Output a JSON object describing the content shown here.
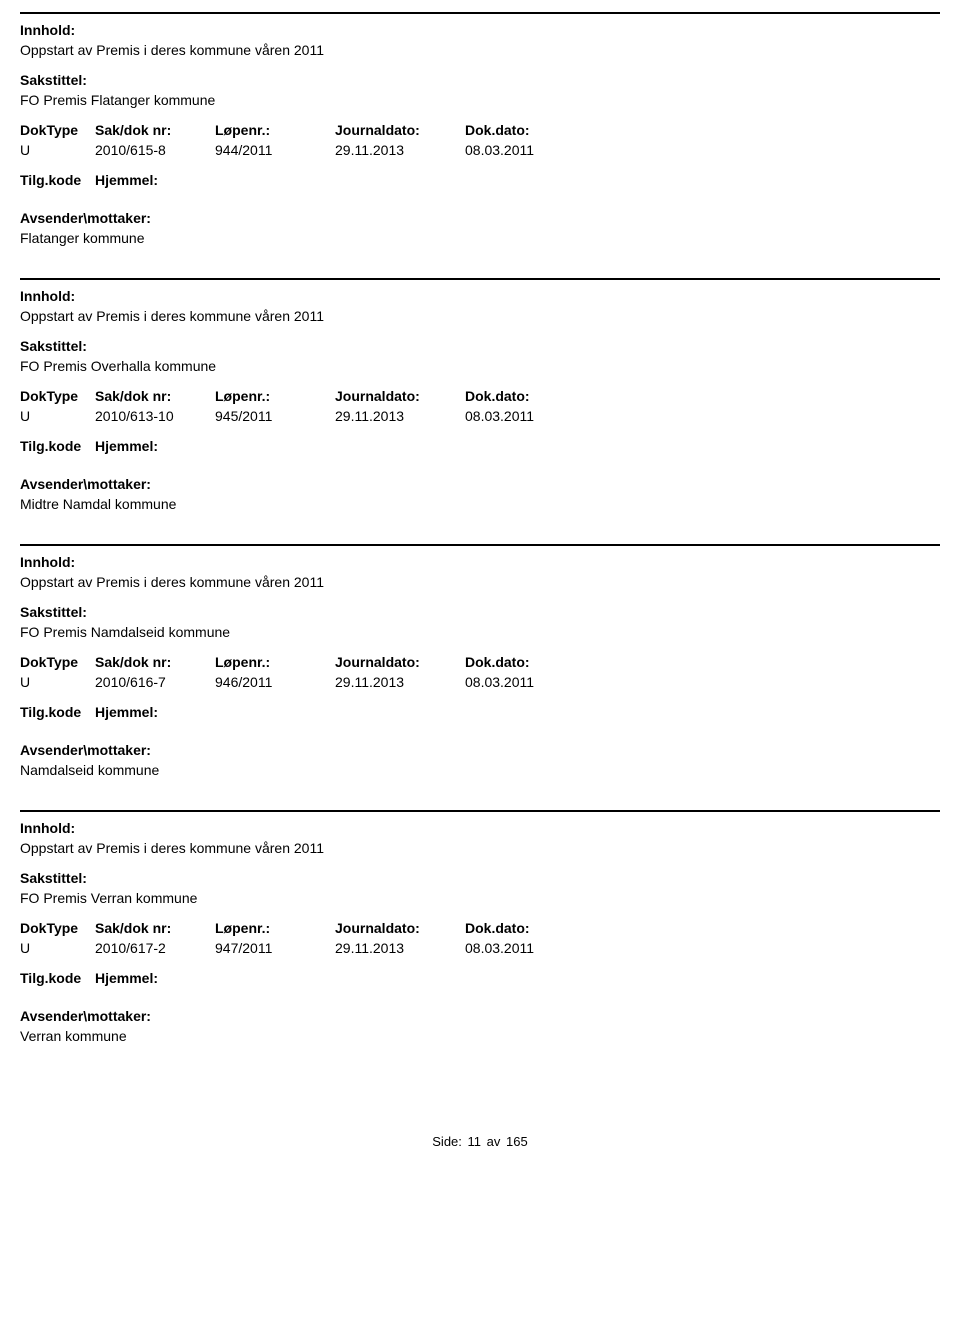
{
  "labels": {
    "innhold": "Innhold:",
    "sakstittel": "Sakstittel:",
    "doktype": "DokType",
    "saknr": "Sak/dok nr:",
    "lopenr": "Løpenr.:",
    "journaldato": "Journaldato:",
    "dokdato": "Dok.dato:",
    "tilgkode": "Tilg.kode",
    "hjemmel": "Hjemmel:",
    "avsender": "Avsender\\mottaker:",
    "side": "Side:",
    "av": "av"
  },
  "pageNumber": "11",
  "totalPages": "165",
  "records": [
    {
      "innhold": "Oppstart av Premis i deres kommune våren 2011",
      "sakstittel": "FO Premis Flatanger kommune",
      "doktype": "U",
      "saknr": "2010/615-8",
      "lopenr": "944/2011",
      "journaldato": "29.11.2013",
      "dokdato": "08.03.2011",
      "avsender": "Flatanger kommune"
    },
    {
      "innhold": "Oppstart av Premis i deres kommune våren 2011",
      "sakstittel": "FO Premis Overhalla kommune",
      "doktype": "U",
      "saknr": "2010/613-10",
      "lopenr": "945/2011",
      "journaldato": "29.11.2013",
      "dokdato": "08.03.2011",
      "avsender": "Midtre Namdal kommune"
    },
    {
      "innhold": "Oppstart av Premis i deres kommune våren 2011",
      "sakstittel": "FO Premis Namdalseid kommune",
      "doktype": "U",
      "saknr": "2010/616-7",
      "lopenr": "946/2011",
      "journaldato": "29.11.2013",
      "dokdato": "08.03.2011",
      "avsender": "Namdalseid kommune"
    },
    {
      "innhold": "Oppstart av Premis i deres kommune våren 2011",
      "sakstittel": "FO Premis Verran kommune",
      "doktype": "U",
      "saknr": "2010/617-2",
      "lopenr": "947/2011",
      "journaldato": "29.11.2013",
      "dokdato": "08.03.2011",
      "avsender": "Verran kommune"
    }
  ]
}
